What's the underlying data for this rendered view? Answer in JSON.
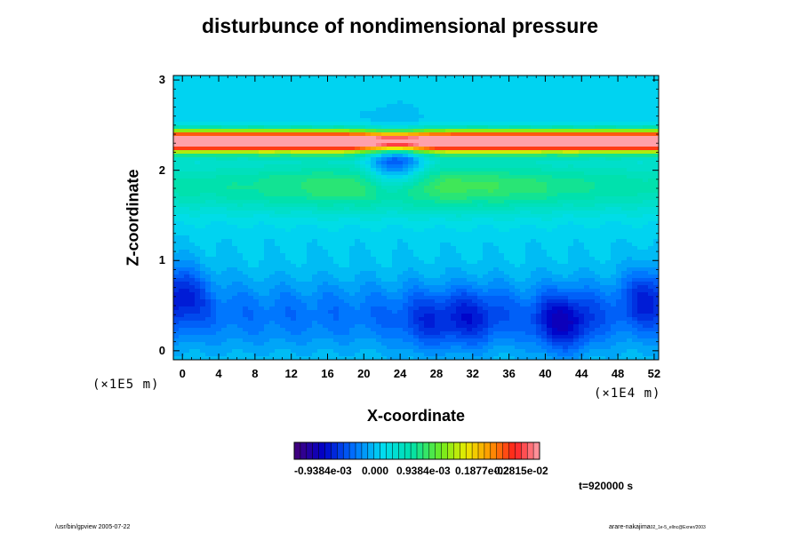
{
  "chart_data": {
    "type": "heatmap",
    "title": "disturbunce of nondimensional pressure",
    "xlabel": "X-coordinate",
    "ylabel": "Z-coordinate",
    "xlim": [
      -1,
      52.5
    ],
    "ylim": [
      -0.1,
      3.05
    ],
    "x_ticks": [
      "0",
      "4",
      "8",
      "12",
      "16",
      "20",
      "24",
      "28",
      "32",
      "36",
      "40",
      "44",
      "48",
      "52"
    ],
    "x_tick_values": [
      0,
      4,
      8,
      12,
      16,
      20,
      24,
      28,
      32,
      36,
      40,
      44,
      48,
      52
    ],
    "y_ticks": [
      "0",
      "1",
      "2",
      "3"
    ],
    "y_tick_values": [
      0,
      1,
      2,
      3
    ],
    "x_scale_label": "(×1E4 m)",
    "y_scale_label": "(×1E5 m)",
    "colorbar": {
      "min": -0.0014,
      "max": 0.0038,
      "levels": 40,
      "tick_labels": [
        "-0.9384e-03",
        "0.000",
        "0.9384e-03",
        "0.1877e-02",
        "0.2815e-02"
      ],
      "tick_values": [
        -0.0009384,
        0.0,
        0.0009384,
        0.001877,
        0.002815
      ]
    },
    "field_features": [
      {
        "name": "upper-positive-band",
        "z_center": 2.32,
        "z_halfwidth": 0.17,
        "amplitude": 0.0042
      },
      {
        "name": "mid-positive-layer",
        "z_center": 1.82,
        "z_halfwidth": 0.38,
        "amplitude": 0.0011
      },
      {
        "name": "lower-negative-layer",
        "z_center": 0.4,
        "z_halfwidth": 0.5,
        "amplitude": -0.0005
      },
      {
        "name": "low-center",
        "x": 42,
        "z": 0.3,
        "amplitude": -0.0008
      },
      {
        "name": "low-center",
        "x": 32,
        "z": 0.35,
        "amplitude": -0.0005
      },
      {
        "name": "low-center",
        "x": -0.5,
        "z": 0.65,
        "amplitude": -0.0007
      },
      {
        "name": "low-center",
        "x": 51.5,
        "z": 0.62,
        "amplitude": -0.0006
      },
      {
        "name": "low-center",
        "x": 27,
        "z": 0.3,
        "amplitude": -0.0004
      },
      {
        "name": "low-center",
        "x": 23.5,
        "z": 2.1,
        "amplitude": -0.0012
      }
    ],
    "time_label": "t=920000 s"
  },
  "footer": {
    "left": "/usr/bin/gpview 2005-07-22",
    "right": "arare-nakajima",
    "right_sub": "02_1e-5_ellnc@Exner/2003"
  }
}
